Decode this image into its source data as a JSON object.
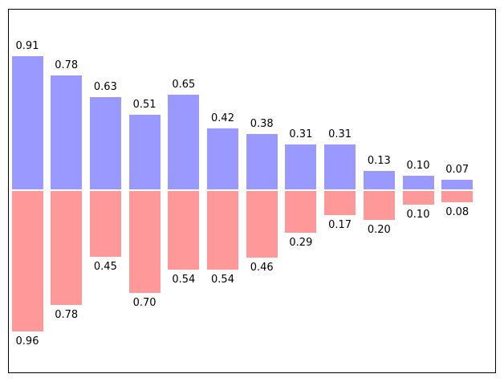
{
  "chart_data": {
    "type": "bar",
    "subtype": "diverging-paired-bars",
    "n_bars": 12,
    "series": [
      {
        "name": "upper",
        "direction": "up",
        "color": "#9999ff",
        "values": [
          0.91,
          0.78,
          0.63,
          0.51,
          0.65,
          0.42,
          0.38,
          0.31,
          0.31,
          0.13,
          0.1,
          0.07
        ],
        "labels": [
          "0.91",
          "0.78",
          "0.63",
          "0.51",
          "0.65",
          "0.42",
          "0.38",
          "0.31",
          "0.31",
          "0.13",
          "0.10",
          "0.07"
        ]
      },
      {
        "name": "lower",
        "direction": "down",
        "color": "#ff9999",
        "values": [
          0.96,
          0.78,
          0.45,
          0.7,
          0.54,
          0.54,
          0.46,
          0.29,
          0.17,
          0.2,
          0.1,
          0.08
        ],
        "labels": [
          "0.96",
          "0.78",
          "0.45",
          "0.70",
          "0.54",
          "0.54",
          "0.46",
          "0.29",
          "0.17",
          "0.20",
          "0.10",
          "0.08"
        ]
      }
    ],
    "ylim": [
      -1.25,
      1.25
    ],
    "baseline_value": 0,
    "grid": false,
    "axis_ticks_visible": false,
    "legend_visible": false,
    "label_color": "#000000",
    "frame_color": "#000000",
    "background": "#ffffff"
  }
}
